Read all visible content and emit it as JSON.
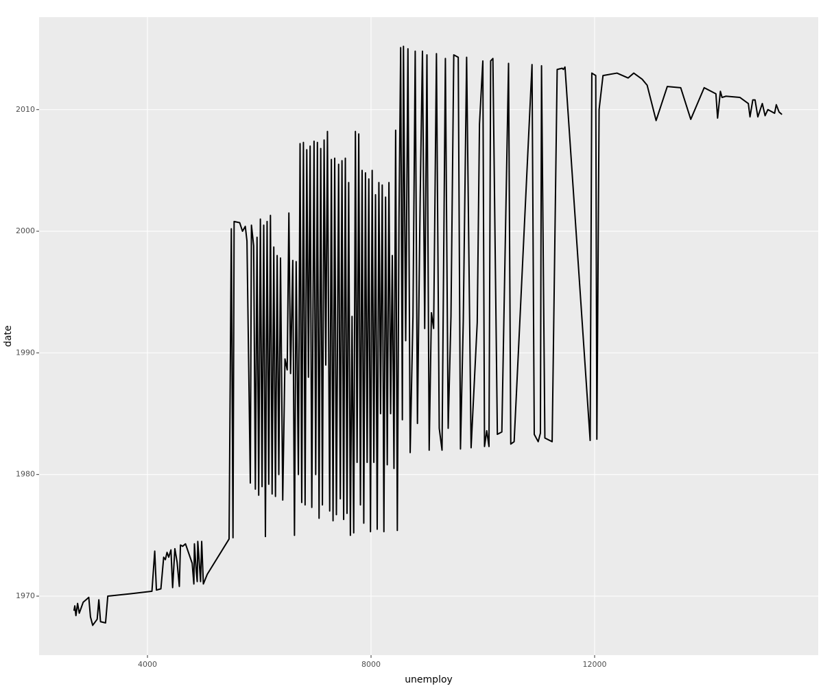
{
  "chart_data": {
    "type": "line",
    "x_label": "unemploy",
    "y_label": "date",
    "xlim": [
      2061,
      16000
    ],
    "ylim": [
      1965.15,
      2017.6
    ],
    "xticks": [
      4000,
      8000,
      12000
    ],
    "yticks": [
      1970,
      1980,
      1990,
      2000,
      2010
    ],
    "grid": true,
    "color": "#000000",
    "background": "#ebebeb",
    "x": [
      2685,
      2700,
      2720,
      2750,
      2780,
      2850,
      2900,
      2950,
      2980,
      3020,
      3100,
      3130,
      3160,
      3250,
      3290,
      3700,
      4080,
      4130,
      4160,
      4240,
      4290,
      4320,
      4350,
      4380,
      4420,
      4450,
      4490,
      4530,
      4570,
      4590,
      4630,
      4680,
      4800,
      4830,
      4840,
      4870,
      4890,
      4900,
      4950,
      4970,
      5000,
      5070,
      5460,
      5500,
      5530,
      5550,
      5650,
      5700,
      5750,
      5780,
      5840,
      5860,
      5900,
      5930,
      5960,
      5990,
      6020,
      6050,
      6080,
      6110,
      6140,
      6170,
      6200,
      6230,
      6260,
      6290,
      6320,
      6350,
      6380,
      6420,
      6460,
      6500,
      6530,
      6560,
      6600,
      6630,
      6660,
      6700,
      6730,
      6760,
      6790,
      6820,
      6850,
      6880,
      6910,
      6940,
      6980,
      7010,
      7040,
      7070,
      7100,
      7130,
      7160,
      7190,
      7220,
      7260,
      7290,
      7320,
      7350,
      7380,
      7420,
      7450,
      7480,
      7510,
      7540,
      7570,
      7600,
      7630,
      7660,
      7690,
      7720,
      7750,
      7780,
      7810,
      7840,
      7870,
      7900,
      7930,
      7960,
      7990,
      8020,
      8050,
      8080,
      8110,
      8140,
      8170,
      8200,
      8230,
      8260,
      8290,
      8320,
      8350,
      8380,
      8410,
      8440,
      8470,
      8500,
      8530,
      8560,
      8580,
      8620,
      8660,
      8700,
      8750,
      8790,
      8830,
      8880,
      8920,
      8960,
      9000,
      9040,
      9080,
      9120,
      9170,
      9220,
      9270,
      9330,
      9380,
      9430,
      9480,
      9560,
      9600,
      9650,
      9710,
      9790,
      9900,
      9940,
      10000,
      10030,
      10070,
      10110,
      10140,
      10180,
      10260,
      10340,
      10460,
      10500,
      10560,
      10880,
      10920,
      10990,
      11030,
      11050,
      11110,
      11240,
      11330,
      11420,
      11440,
      11470,
      11920,
      11950,
      12020,
      12040,
      12080,
      12150,
      12400,
      12600,
      12700,
      12850,
      12940,
      13100,
      13300,
      13540,
      13720,
      13960,
      14170,
      14200,
      14250,
      14280,
      14350,
      14600,
      14750,
      14780,
      14830,
      14870,
      14920,
      15000,
      15050,
      15100,
      15220,
      15250,
      15300,
      15352
    ],
    "values": [
      1968.8,
      1969.2,
      1968.4,
      1969.4,
      1968.6,
      1969.5,
      1969.7,
      1969.9,
      1968.3,
      1967.6,
      1968.1,
      1969.7,
      1967.9,
      1967.8,
      1970.0,
      1970.2,
      1970.4,
      1973.7,
      1970.5,
      1970.6,
      1973.2,
      1973.0,
      1973.6,
      1973.2,
      1973.8,
      1970.7,
      1973.9,
      1972.8,
      1970.8,
      1974.2,
      1974.1,
      1974.3,
      1972.7,
      1971.0,
      1974.3,
      1972.2,
      1971.2,
      1974.5,
      1971.2,
      1974.5,
      1971.0,
      1971.8,
      1974.7,
      2000.2,
      1974.8,
      2000.8,
      2000.7,
      2000.0,
      2000.4,
      1999.2,
      1979.3,
      2000.5,
      1998.8,
      1978.8,
      1999.5,
      1978.3,
      2001.0,
      1979.0,
      2000.5,
      1974.9,
      2000.8,
      1979.2,
      2001.3,
      1978.4,
      1998.7,
      1978.2,
      1998.0,
      1980.0,
      1997.8,
      1977.9,
      1989.5,
      1988.6,
      2001.5,
      1988.3,
      1997.6,
      1975.0,
      1997.5,
      1980.0,
      2007.2,
      1977.7,
      2007.3,
      1977.5,
      2006.7,
      1988.0,
      2007.0,
      1977.3,
      2007.4,
      1980.0,
      2007.3,
      1976.4,
      2006.8,
      1977.5,
      2007.5,
      1989.0,
      2008.2,
      1977.0,
      2005.9,
      1976.2,
      2006.0,
      1976.7,
      2005.5,
      1978.0,
      2005.8,
      1976.3,
      2006.0,
      1976.8,
      2004.0,
      1975.0,
      1993.0,
      1975.2,
      2008.2,
      1981.0,
      2008.0,
      1977.5,
      2005.0,
      1976.0,
      2004.8,
      1981.0,
      2004.3,
      1975.3,
      2005.0,
      1981.0,
      2003.0,
      1975.5,
      2004.0,
      1985.0,
      2003.8,
      1975.3,
      2002.8,
      1980.8,
      2004.0,
      1985.0,
      1998.0,
      1980.5,
      2008.3,
      1975.4,
      2001.0,
      2015.1,
      1984.5,
      2015.2,
      1991.0,
      2015.0,
      1981.8,
      1993.0,
      2014.8,
      1984.2,
      2003.0,
      2014.8,
      1992.0,
      2014.5,
      1982.0,
      1993.3,
      1992.0,
      2014.6,
      1983.8,
      1982.0,
      2014.2,
      1983.8,
      1993.0,
      2014.5,
      2014.3,
      1982.1,
      1992.6,
      2014.3,
      1982.2,
      1992.5,
      2008.8,
      2014.0,
      1982.3,
      1983.6,
      1982.3,
      2014.0,
      2014.2,
      1983.3,
      1983.5,
      2013.8,
      1982.5,
      1982.7,
      2013.7,
      1983.3,
      1982.7,
      1983.4,
      2013.6,
      1983.0,
      1982.7,
      2013.3,
      2013.4,
      2013.3,
      2013.5,
      1982.8,
      2013.0,
      2012.8,
      1982.9,
      2010.0,
      2012.8,
      2013.0,
      2012.6,
      2013.0,
      2012.5,
      2012.0,
      2009.1,
      2011.9,
      2011.8,
      2009.2,
      2011.8,
      2011.3,
      2009.3,
      2011.5,
      2011.0,
      2011.1,
      2011.0,
      2010.5,
      2009.4,
      2010.8,
      2010.8,
      2009.4,
      2010.5,
      2009.5,
      2010.0,
      2009.7,
      2010.4,
      2009.8,
      2009.6
    ]
  }
}
